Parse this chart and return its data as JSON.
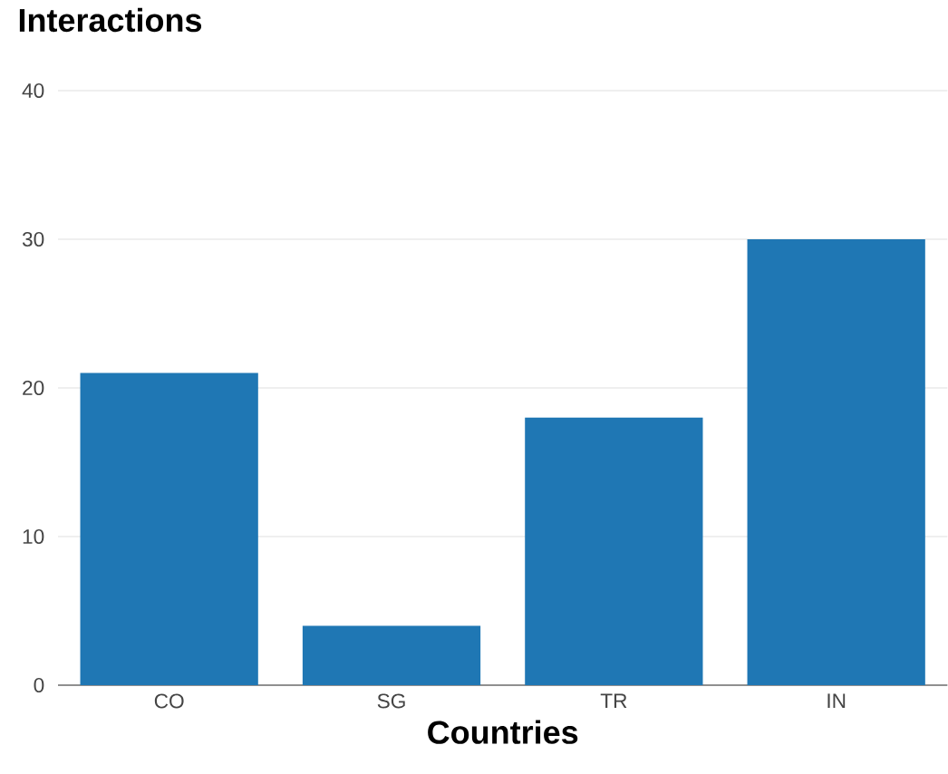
{
  "chart_data": {
    "type": "bar",
    "title": "Interactions",
    "xlabel": "Countries",
    "categories": [
      "CO",
      "SG",
      "TR",
      "IN"
    ],
    "values": [
      21,
      4,
      18,
      30
    ],
    "color": "#1f77b4",
    "ylim": [
      0,
      40
    ],
    "yticks": [
      0,
      10,
      20,
      30,
      40
    ],
    "grid": "y"
  }
}
